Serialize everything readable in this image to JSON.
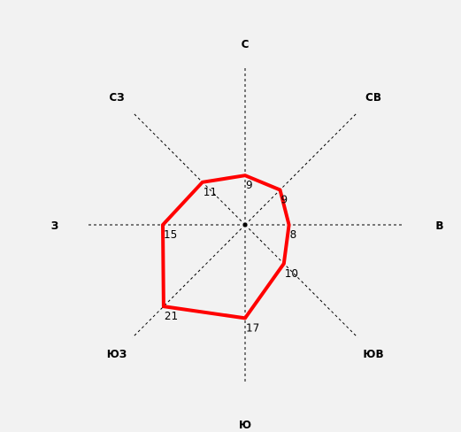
{
  "chart_data": {
    "type": "radar",
    "directions": [
      "С",
      "СВ",
      "В",
      "ЮВ",
      "Ю",
      "ЮЗ",
      "З",
      "СЗ"
    ],
    "values": [
      9,
      9,
      8,
      10,
      17,
      21,
      15,
      11
    ],
    "value_labels": [
      "9",
      "9",
      "8",
      "10",
      "17",
      "21",
      "15",
      "11"
    ],
    "series_color": "#ff0000",
    "background": "#f2f2f2",
    "axis_color": "#000000",
    "rmax": 30,
    "grid": false,
    "legend": "none"
  }
}
